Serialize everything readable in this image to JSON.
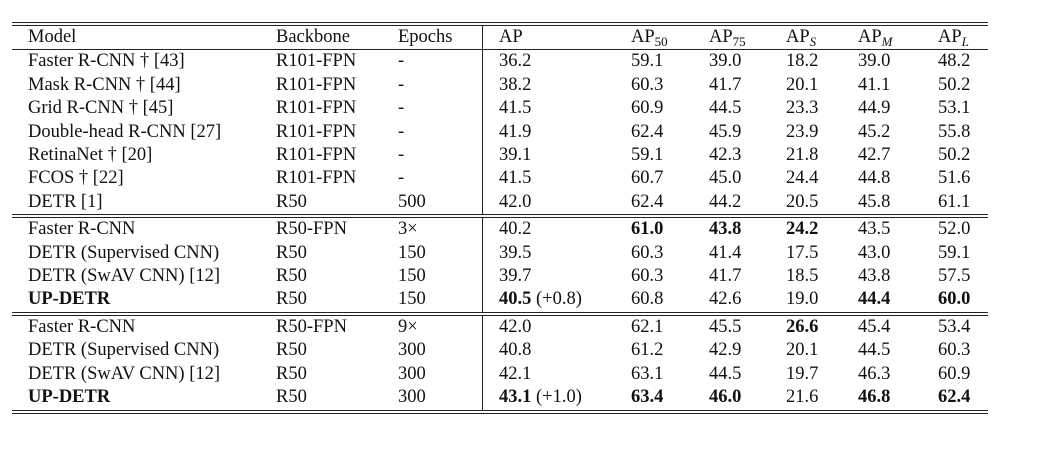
{
  "header": {
    "model": "Model",
    "backbone": "Backbone",
    "epochs": "Epochs",
    "ap": "AP",
    "ap50": "AP",
    "ap50_sub": "50",
    "ap75": "AP",
    "ap75_sub": "75",
    "aps": "AP",
    "aps_sub": "S",
    "apm": "AP",
    "apm_sub": "M",
    "apl": "AP",
    "apl_sub": "L"
  },
  "groups": [
    {
      "rows": [
        {
          "model": "Faster R-CNN † [43]",
          "backbone": "R101-FPN",
          "epochs": "-",
          "ap": "36.2",
          "ap_gain": "",
          "ap50": "59.1",
          "ap75": "39.0",
          "aps": "18.2",
          "apm": "39.0",
          "apl": "48.2",
          "bold": []
        },
        {
          "model": "Mask R-CNN † [44]",
          "backbone": "R101-FPN",
          "epochs": "-",
          "ap": "38.2",
          "ap_gain": "",
          "ap50": "60.3",
          "ap75": "41.7",
          "aps": "20.1",
          "apm": "41.1",
          "apl": "50.2",
          "bold": []
        },
        {
          "model": "Grid R-CNN † [45]",
          "backbone": "R101-FPN",
          "epochs": "-",
          "ap": "41.5",
          "ap_gain": "",
          "ap50": "60.9",
          "ap75": "44.5",
          "aps": "23.3",
          "apm": "44.9",
          "apl": "53.1",
          "bold": []
        },
        {
          "model": "Double-head R-CNN [27]",
          "backbone": "R101-FPN",
          "epochs": "-",
          "ap": "41.9",
          "ap_gain": "",
          "ap50": "62.4",
          "ap75": "45.9",
          "aps": "23.9",
          "apm": "45.2",
          "apl": "55.8",
          "bold": []
        },
        {
          "model": "RetinaNet † [20]",
          "backbone": "R101-FPN",
          "epochs": "-",
          "ap": "39.1",
          "ap_gain": "",
          "ap50": "59.1",
          "ap75": "42.3",
          "aps": "21.8",
          "apm": "42.7",
          "apl": "50.2",
          "bold": []
        },
        {
          "model": "FCOS † [22]",
          "backbone": "R101-FPN",
          "epochs": "-",
          "ap": "41.5",
          "ap_gain": "",
          "ap50": "60.7",
          "ap75": "45.0",
          "aps": "24.4",
          "apm": "44.8",
          "apl": "51.6",
          "bold": []
        },
        {
          "model": "DETR [1]",
          "backbone": "R50",
          "epochs": "500",
          "ap": "42.0",
          "ap_gain": "",
          "ap50": "62.4",
          "ap75": "44.2",
          "aps": "20.5",
          "apm": "45.8",
          "apl": "61.1",
          "bold": []
        }
      ]
    },
    {
      "rows": [
        {
          "model": "Faster R-CNN",
          "backbone": "R50-FPN",
          "epochs": "3×",
          "ap": "40.2",
          "ap_gain": "",
          "ap50": "61.0",
          "ap75": "43.8",
          "aps": "24.2",
          "apm": "43.5",
          "apl": "52.0",
          "bold": [
            "ap50",
            "ap75",
            "aps"
          ]
        },
        {
          "model": "DETR (Supervised CNN)",
          "backbone": "R50",
          "epochs": "150",
          "ap": "39.5",
          "ap_gain": "",
          "ap50": "60.3",
          "ap75": "41.4",
          "aps": "17.5",
          "apm": "43.0",
          "apl": "59.1",
          "bold": []
        },
        {
          "model": "DETR (SwAV CNN) [12]",
          "backbone": "R50",
          "epochs": "150",
          "ap": "39.7",
          "ap_gain": "",
          "ap50": "60.3",
          "ap75": "41.7",
          "aps": "18.5",
          "apm": "43.8",
          "apl": "57.5",
          "bold": []
        },
        {
          "model": "UP-DETR",
          "backbone": "R50",
          "epochs": "150",
          "ap": "40.5",
          "ap_gain": "(+0.8)",
          "ap50": "60.8",
          "ap75": "42.6",
          "aps": "19.0",
          "apm": "44.4",
          "apl": "60.0",
          "bold": [
            "model",
            "ap",
            "apm",
            "apl"
          ]
        }
      ]
    },
    {
      "rows": [
        {
          "model": "Faster R-CNN",
          "backbone": "R50-FPN",
          "epochs": "9×",
          "ap": "42.0",
          "ap_gain": "",
          "ap50": "62.1",
          "ap75": "45.5",
          "aps": "26.6",
          "apm": "45.4",
          "apl": "53.4",
          "bold": [
            "aps"
          ]
        },
        {
          "model": "DETR (Supervised CNN)",
          "backbone": "R50",
          "epochs": "300",
          "ap": "40.8",
          "ap_gain": "",
          "ap50": "61.2",
          "ap75": "42.9",
          "aps": "20.1",
          "apm": "44.5",
          "apl": "60.3",
          "bold": []
        },
        {
          "model": "DETR (SwAV CNN) [12]",
          "backbone": "R50",
          "epochs": "300",
          "ap": "42.1",
          "ap_gain": "",
          "ap50": "63.1",
          "ap75": "44.5",
          "aps": "19.7",
          "apm": "46.3",
          "apl": "60.9",
          "bold": []
        },
        {
          "model": "UP-DETR",
          "backbone": "R50",
          "epochs": "300",
          "ap": "43.1",
          "ap_gain": "(+1.0)",
          "ap50": "63.4",
          "ap75": "46.0",
          "aps": "21.6",
          "apm": "46.8",
          "apl": "62.4",
          "bold": [
            "model",
            "ap",
            "ap50",
            "ap75",
            "apm",
            "apl"
          ]
        }
      ]
    }
  ]
}
